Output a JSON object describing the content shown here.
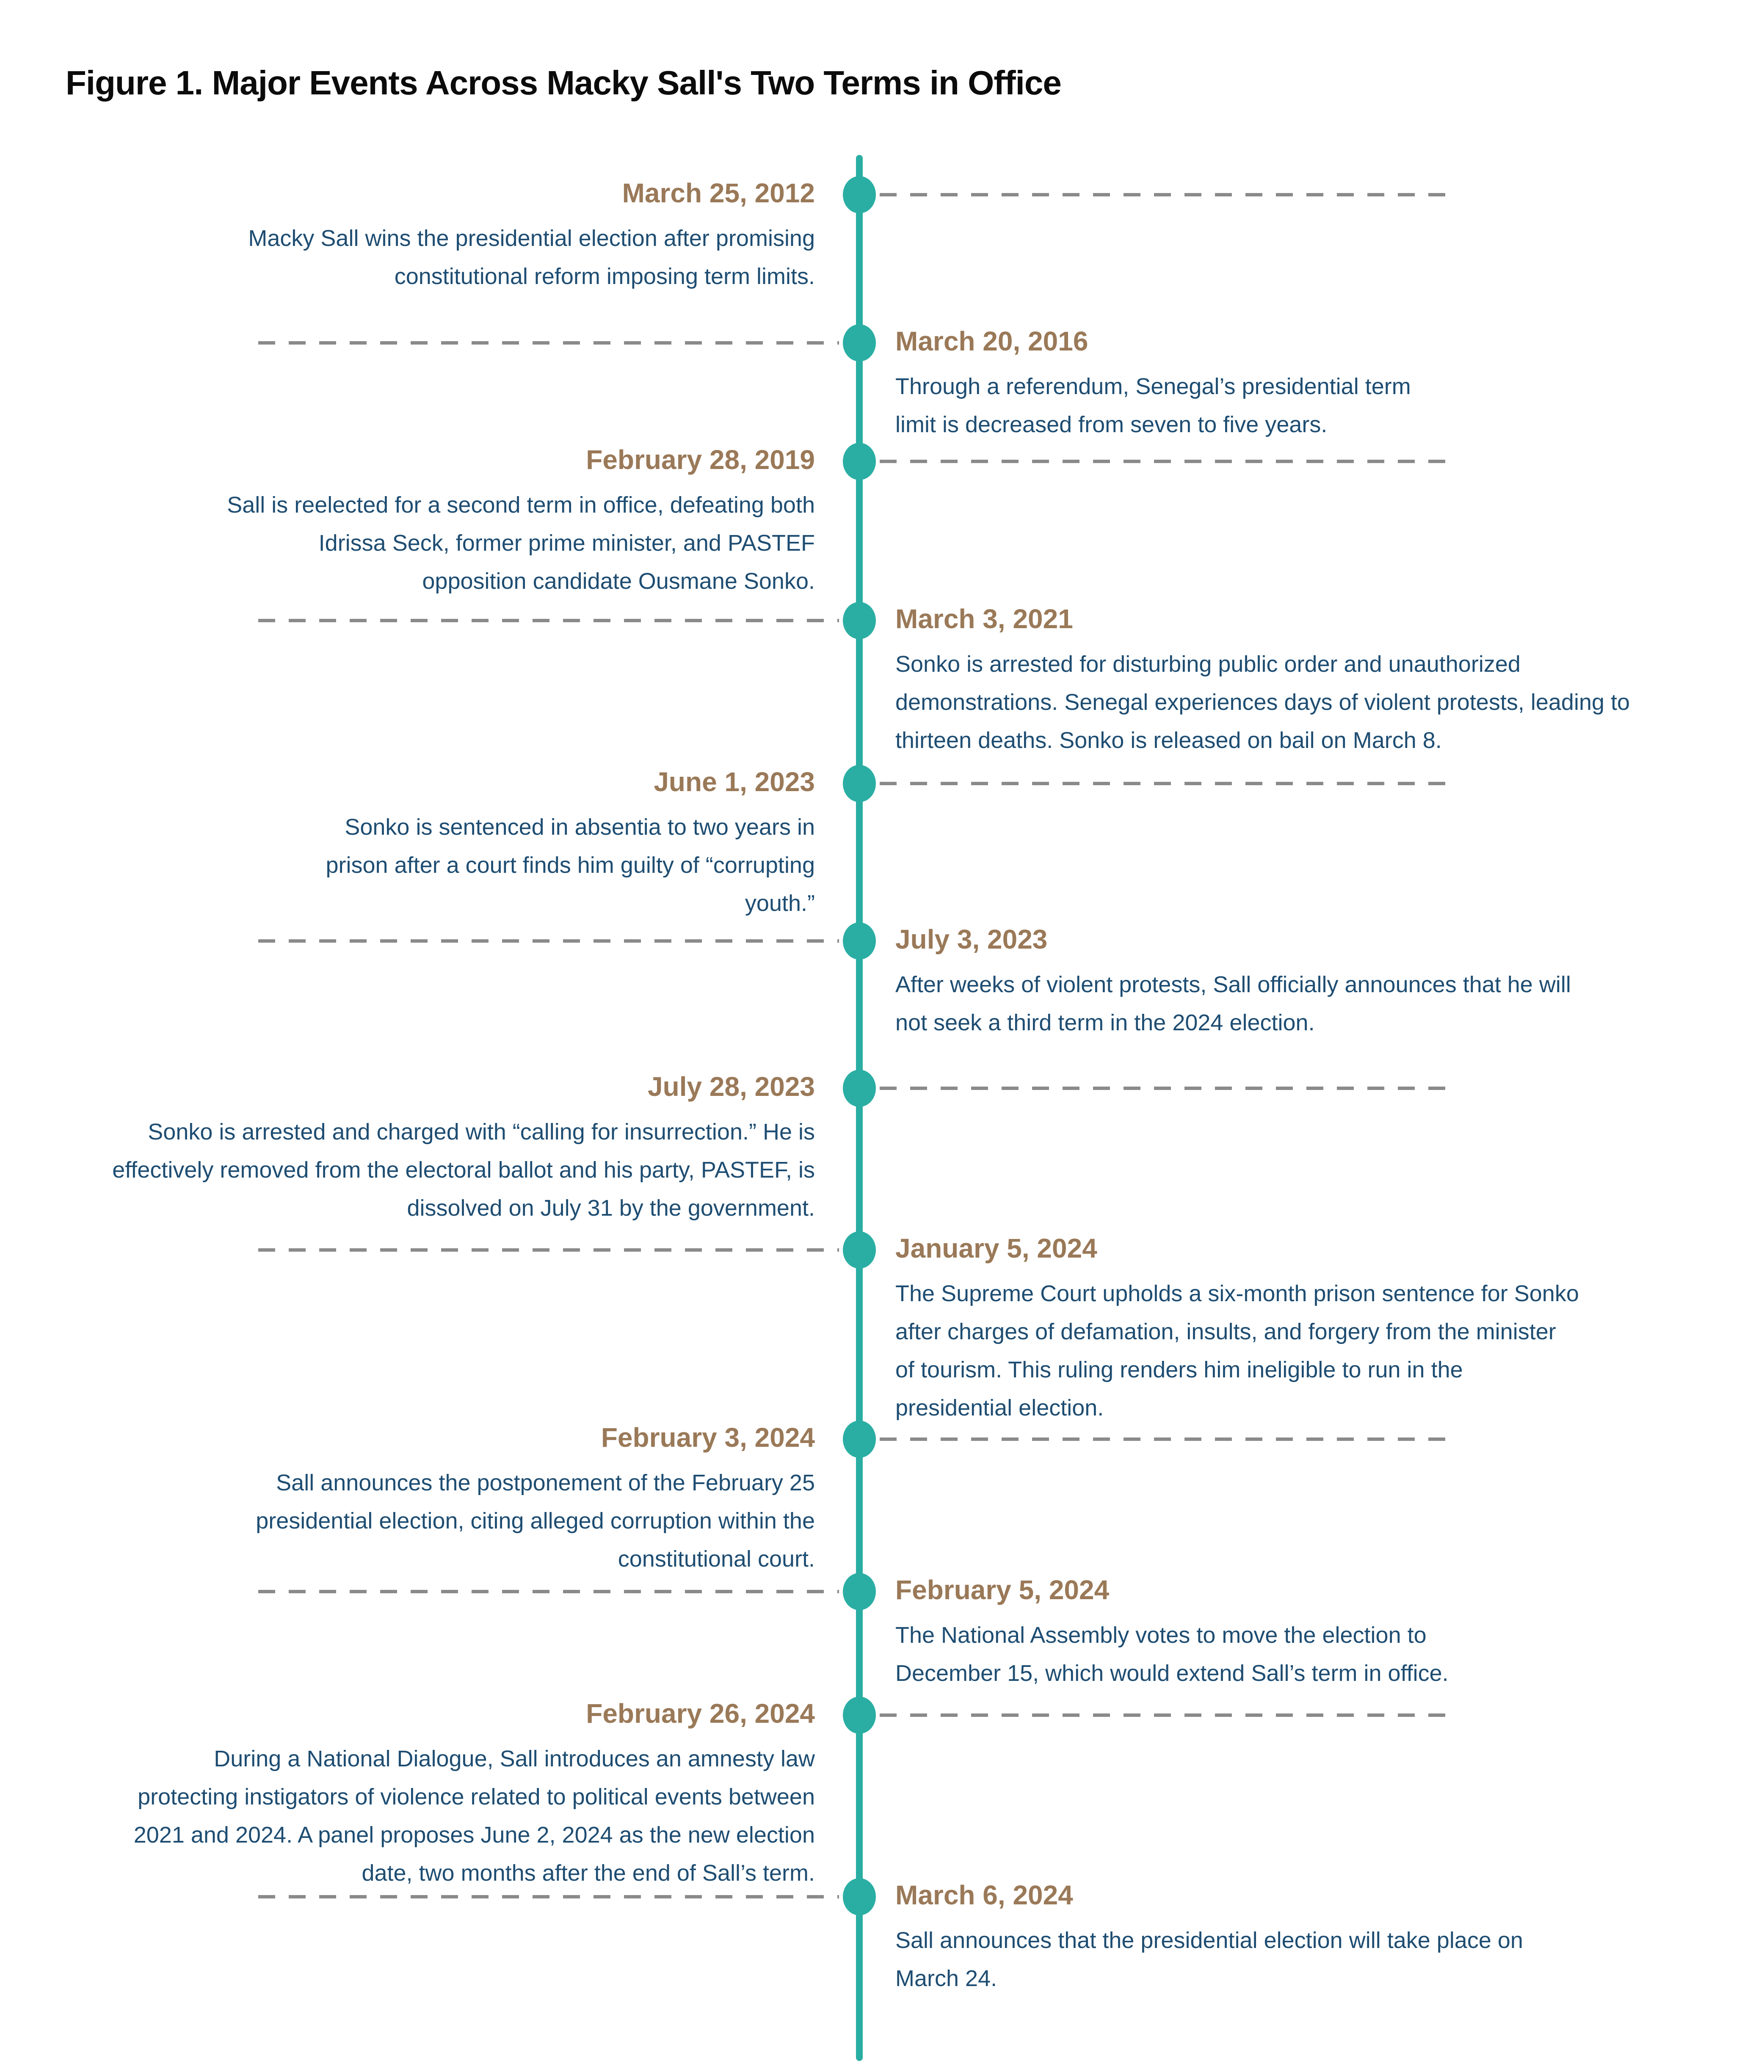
{
  "title": "Figure 1. Major Events Across Macky Sall's Two Terms in Office",
  "colors": {
    "axis_teal": "#2aaea3",
    "date_brown": "#9a7958",
    "text_navy": "#1e4d72",
    "dash_gray": "#8a8a8a",
    "title_black": "#0b0b0b"
  },
  "events": [
    {
      "date": "March 25, 2012",
      "side": "left",
      "text": "Macky Sall wins the presidential election after promising constitutional reform imposing term limits."
    },
    {
      "date": "March 20, 2016",
      "side": "right",
      "text": "Through a referendum, Senegal’s presidential term limit is decreased from seven to five years."
    },
    {
      "date": "February 28, 2019",
      "side": "left",
      "text": "Sall is reelected for a second term in office, defeating both Idrissa Seck, former prime minister, and PASTEF opposition candidate Ousmane Sonko."
    },
    {
      "date": "March 3, 2021",
      "side": "right",
      "text": "Sonko is arrested for disturbing public order and unauthorized demonstrations. Senegal experiences days of violent protests, leading to thirteen deaths. Sonko is released on bail on March 8."
    },
    {
      "date": "June 1, 2023",
      "side": "left",
      "text": "Sonko is sentenced in absentia to two years in prison after a court finds him guilty of “corrupting youth.”"
    },
    {
      "date": "July 3, 2023",
      "side": "right",
      "text": "After weeks of violent protests, Sall officially announces that he will not seek a third term in the 2024 election."
    },
    {
      "date": "July 28, 2023",
      "side": "left",
      "text": "Sonko is arrested and charged with “calling for insurrection.” He is effectively removed from the electoral ballot and his party, PASTEF, is dissolved on July 31 by the government."
    },
    {
      "date": "January 5, 2024",
      "side": "right",
      "text": "The Supreme Court upholds a six-month prison sentence for Sonko after charges of defamation, insults, and forgery from the minister of tourism. This ruling renders him ineligible to run in the presidential election."
    },
    {
      "date": "February 3, 2024",
      "side": "left",
      "text": "Sall announces the postponement of the February 25 presidential election, citing alleged corruption within the constitutional court."
    },
    {
      "date": "February 5, 2024",
      "side": "right",
      "text": "The National Assembly votes to move the election to December 15, which would extend Sall’s term in office."
    },
    {
      "date": "February 26, 2024",
      "side": "left",
      "text": "During a National Dialogue, Sall introduces an amnesty law protecting instigators of violence related to political events between 2021 and 2024. A panel proposes June 2, 2024 as the new election date, two months after the end of Sall’s term."
    },
    {
      "date": "March 6, 2024",
      "side": "right",
      "text": "Sall announces that the presidential election will take place on March 24."
    }
  ]
}
